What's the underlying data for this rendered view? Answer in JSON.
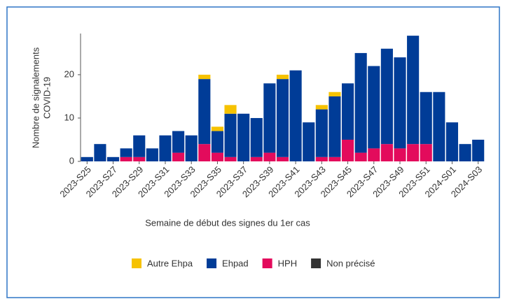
{
  "chart_data": {
    "type": "stacked_bar",
    "y_label": [
      "Nombre de signalements",
      "COVID-19"
    ],
    "x_label": "Semaine de début des signes du 1er cas",
    "categories": [
      "2023-S25",
      null,
      "2023-S27",
      null,
      "2023-S29",
      null,
      "2023-S31",
      null,
      "2023-S33",
      null,
      "2023-S35",
      null,
      "2023-S37",
      null,
      "2023-S39",
      null,
      "2023-S41",
      null,
      "2023-S43",
      null,
      "2023-S45",
      null,
      "2023-S47",
      null,
      "2023-S49",
      null,
      "2023-S51",
      null,
      "2024-S01",
      null,
      "2024-S03"
    ],
    "series": [
      {
        "name": "Autre Ehpa",
        "color": "#f6c200",
        "values": [
          0,
          0,
          0,
          0,
          0,
          0,
          0,
          0,
          0,
          1,
          1,
          2,
          0,
          0,
          0,
          1,
          0,
          0,
          1,
          1,
          0,
          0,
          0,
          0,
          0,
          0,
          0,
          0,
          0,
          0,
          0
        ]
      },
      {
        "name": "Ehpad",
        "color": "#003c97",
        "values": [
          1,
          4,
          1,
          2,
          5,
          3,
          6,
          5,
          6,
          15,
          5,
          10,
          11,
          9,
          16,
          18,
          21,
          9,
          11,
          14,
          13,
          23,
          19,
          22,
          21,
          25,
          12,
          16,
          9,
          4,
          5
        ]
      },
      {
        "name": "HPH",
        "color": "#e30b5c",
        "values": [
          0,
          0,
          0,
          1,
          1,
          0,
          0,
          2,
          0,
          4,
          2,
          1,
          0,
          1,
          2,
          1,
          0,
          0,
          1,
          1,
          5,
          2,
          3,
          4,
          3,
          4,
          4,
          0,
          0,
          0,
          0
        ]
      },
      {
        "name": "Non précisé",
        "color": "#333333",
        "values": [
          0,
          0,
          0,
          0,
          0,
          0,
          0,
          0,
          0,
          0,
          0,
          0,
          0,
          0,
          0,
          0,
          0,
          0,
          0,
          0,
          0,
          0,
          0,
          0,
          0,
          0,
          0,
          0,
          0,
          0,
          0
        ]
      }
    ],
    "ylim": [
      0,
      29.5
    ],
    "yticks": [
      0,
      10,
      20
    ],
    "grid": false
  }
}
